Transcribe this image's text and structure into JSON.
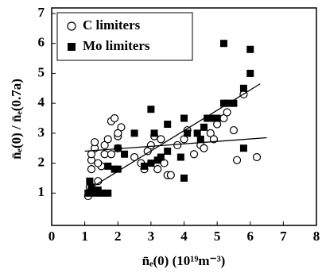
{
  "chart_data": {
    "type": "scatter",
    "x_label": "n̄ₑ(0) (10¹⁹m⁻³)",
    "y_label": "n̄ₑ(0) / n̄ₑ(0.7a)",
    "xlim": [
      0,
      8
    ],
    "xticks": [
      0,
      1,
      2,
      3,
      4,
      5,
      6,
      7,
      8
    ],
    "ylim": [
      0,
      7
    ],
    "yticks": [
      1,
      2,
      3,
      4,
      5,
      6,
      7
    ],
    "legend": "top-left",
    "series": [
      {
        "name": "C limiters",
        "marker": "circle",
        "color": "#000000",
        "x": [
          1.1,
          1.15,
          1.2,
          1.2,
          1.3,
          1.3,
          1.4,
          1.5,
          1.6,
          1.6,
          1.7,
          1.8,
          1.8,
          1.9,
          2.0,
          2.0,
          2.1,
          2.0,
          2.5,
          2.7,
          2.8,
          2.9,
          3.0,
          3.1,
          3.2,
          3.3,
          3.4,
          3.5,
          3.6,
          3.8,
          4.0,
          4.1,
          4.3,
          4.5,
          4.6,
          4.8,
          5.0,
          5.2,
          5.3,
          5.5,
          5.6,
          5.8,
          6.2,
          4.9,
          1.2,
          1.4
        ],
        "values": [
          0.9,
          1.2,
          1.8,
          2.1,
          2.5,
          2.7,
          1.4,
          1.9,
          2.3,
          2.6,
          2.8,
          2.3,
          3.4,
          3.5,
          2.9,
          2.5,
          3.2,
          3.0,
          2.2,
          2.0,
          1.8,
          2.4,
          2.6,
          2.9,
          1.8,
          2.8,
          2.0,
          1.6,
          1.6,
          2.6,
          2.8,
          3.1,
          2.3,
          2.6,
          2.5,
          3.0,
          3.3,
          3.5,
          3.7,
          3.1,
          2.1,
          4.3,
          2.2,
          2.8,
          2.3,
          2.0
        ]
      },
      {
        "name": "Mo limiters",
        "marker": "square",
        "color": "#000000",
        "x": [
          1.1,
          1.15,
          1.2,
          1.3,
          1.4,
          1.5,
          1.7,
          1.7,
          1.9,
          2.0,
          2.0,
          2.5,
          2.8,
          3.0,
          3.0,
          3.1,
          3.2,
          3.3,
          3.5,
          3.5,
          3.9,
          4.0,
          4.0,
          4.1,
          4.4,
          4.5,
          4.6,
          4.7,
          4.8,
          5.0,
          5.2,
          5.2,
          5.5,
          5.8,
          5.8,
          6.0,
          6.0,
          5.3,
          2.2
        ],
        "values": [
          1.0,
          1.4,
          1.2,
          1.0,
          1.1,
          1.0,
          1.0,
          1.9,
          1.8,
          2.5,
          1.8,
          3.0,
          1.9,
          3.8,
          2.0,
          3.0,
          2.1,
          2.2,
          2.4,
          3.3,
          2.2,
          1.5,
          3.5,
          3.0,
          3.0,
          2.8,
          3.2,
          3.5,
          3.5,
          3.5,
          6.0,
          4.0,
          4.0,
          4.5,
          2.5,
          5.8,
          5.0,
          4.0,
          2.3
        ]
      }
    ],
    "fit_lines": [
      {
        "x": [
          1.0,
          6.5
        ],
        "values": [
          2.4,
          2.85
        ]
      },
      {
        "x": [
          1.0,
          6.3
        ],
        "values": [
          1.05,
          4.65
        ]
      }
    ]
  }
}
